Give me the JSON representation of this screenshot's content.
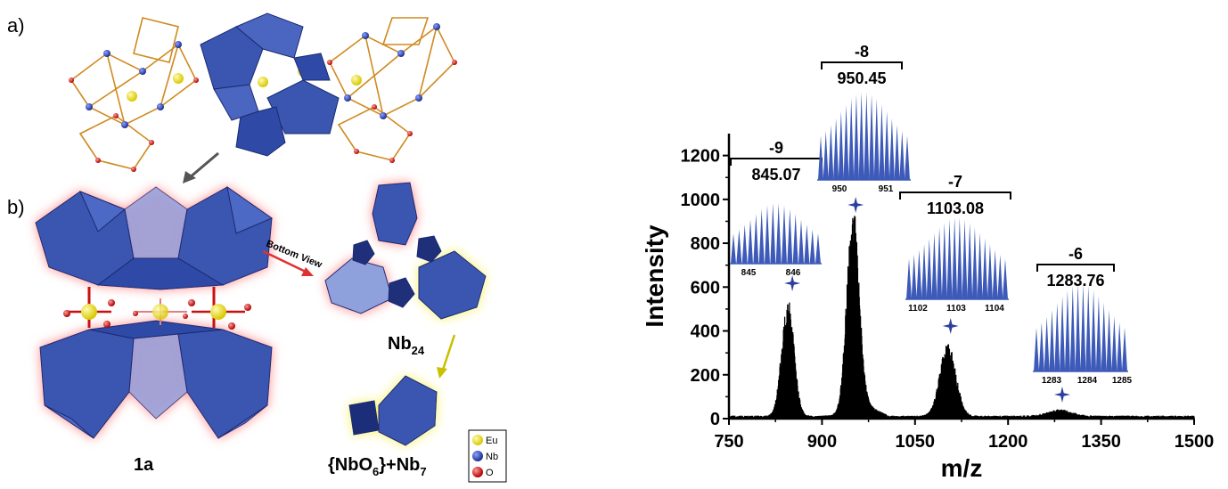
{
  "panels": {
    "a_label": "a)",
    "b_label": "b)",
    "bottom_view": "Bottom View",
    "nb24_base": "Nb",
    "nb24_sub": "24",
    "compound": "1a",
    "fragment_a": "{NbO",
    "fragment_sub1": "6",
    "fragment_b": "}+Nb",
    "fragment_sub2": "7"
  },
  "legend": {
    "items": [
      {
        "label": "Eu",
        "color": "#f2e200"
      },
      {
        "label": "Nb",
        "color": "#2f4bb8"
      },
      {
        "label": "O",
        "color": "#e01010"
      }
    ]
  },
  "colors": {
    "polyhedra": "#3a56b0",
    "polyhedra_dark": "#1f2f7a",
    "spectrum": "#000000",
    "isotope": "#3d5ab8",
    "star": "#2e3e9e"
  },
  "chart_data": {
    "type": "line",
    "xlabel": "m/z",
    "ylabel": "Intensity",
    "xlim": [
      750,
      1500
    ],
    "ylim": [
      0,
      1300
    ],
    "xticks": [
      750,
      900,
      1050,
      1200,
      1350,
      1500
    ],
    "yticks": [
      0,
      200,
      400,
      600,
      800,
      1000,
      1200
    ],
    "peaks": [
      {
        "charge": "-9",
        "mz": "845.07",
        "center": 845,
        "height": 540,
        "width": 14
      },
      {
        "charge": "-8",
        "mz": "950.45",
        "center": 950,
        "height": 920,
        "width": 14
      },
      {
        "charge": "-7",
        "mz": "1103.08",
        "center": 1103,
        "height": 340,
        "width": 18
      },
      {
        "charge": "-6",
        "mz": "1283.76",
        "center": 1283,
        "height": 30,
        "width": 28
      }
    ],
    "insets": [
      {
        "ticks": [
          "845",
          "846"
        ]
      },
      {
        "ticks": [
          "950",
          "951"
        ]
      },
      {
        "ticks": [
          "1102",
          "1103",
          "1104"
        ]
      },
      {
        "ticks": [
          "1283",
          "1284",
          "1285"
        ]
      }
    ]
  }
}
